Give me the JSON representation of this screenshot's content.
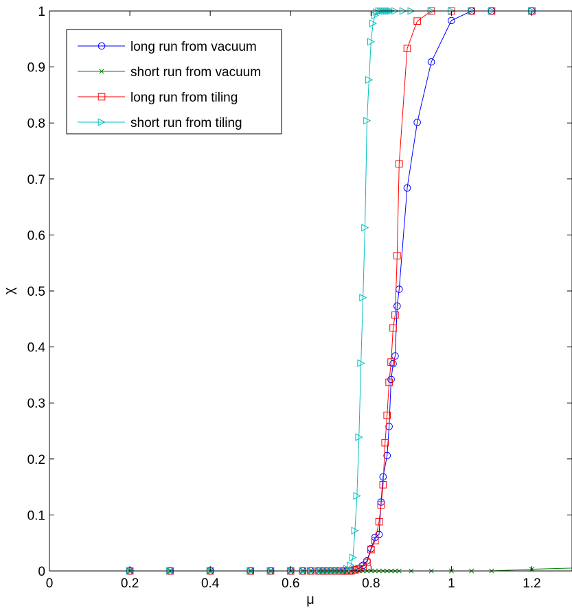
{
  "chart_data": {
    "type": "line",
    "title": "",
    "xlabel": "μ",
    "ylabel": "χ",
    "xlim": [
      0,
      1.3
    ],
    "ylim": [
      0,
      1
    ],
    "xticks": [
      0,
      0.2,
      0.4,
      0.6,
      0.8,
      1,
      1.2
    ],
    "xtick_labels": [
      "0",
      "0.2",
      "0.4",
      "0.6",
      "0.8",
      "1",
      "1.2"
    ],
    "yticks": [
      0,
      0.1,
      0.2,
      0.3,
      0.4,
      0.5,
      0.6,
      0.7,
      0.8,
      0.9,
      1
    ],
    "ytick_labels": [
      "0",
      "0.1",
      "0.2",
      "0.3",
      "0.4",
      "0.5",
      "0.6",
      "0.7",
      "0.8",
      "0.9",
      "1"
    ],
    "grid": false,
    "legend_position": "top-left",
    "series": [
      {
        "name": "long run from vacuum",
        "color": "#0000ff",
        "marker": "circle",
        "x": [
          0,
          0.2,
          0.3,
          0.4,
          0.5,
          0.55,
          0.6,
          0.63,
          0.65,
          0.67,
          0.68,
          0.69,
          0.7,
          0.71,
          0.72,
          0.73,
          0.74,
          0.75,
          0.76,
          0.77,
          0.78,
          0.79,
          0.8,
          0.81,
          0.82,
          0.825,
          0.83,
          0.84,
          0.845,
          0.85,
          0.855,
          0.86,
          0.865,
          0.87,
          0.89,
          0.915,
          0.95,
          1,
          1.05,
          1.1,
          1.2,
          1.3
        ],
        "y": [
          0,
          0,
          0,
          0,
          0,
          0,
          0,
          0,
          0,
          0,
          0,
          0,
          0,
          0,
          0,
          0,
          0,
          0,
          0.002,
          0.005,
          0.01,
          0.018,
          0.04,
          0.06,
          0.065,
          0.123,
          0.168,
          0.206,
          0.258,
          0.342,
          0.37,
          0.384,
          0.473,
          0.503,
          0.684,
          0.801,
          0.909,
          0.983,
          1,
          1,
          1,
          1
        ]
      },
      {
        "name": "short run from vacuum",
        "color": "#008000",
        "marker": "x",
        "x": [
          0,
          0.2,
          0.3,
          0.4,
          0.5,
          0.55,
          0.6,
          0.63,
          0.65,
          0.67,
          0.68,
          0.69,
          0.7,
          0.71,
          0.72,
          0.73,
          0.74,
          0.75,
          0.76,
          0.77,
          0.78,
          0.79,
          0.8,
          0.81,
          0.82,
          0.83,
          0.84,
          0.85,
          0.86,
          0.87,
          0.9,
          0.95,
          1,
          1.05,
          1.1,
          1.2,
          1.3
        ],
        "y": [
          0,
          0,
          0,
          0,
          0,
          0,
          0,
          0,
          0,
          0,
          0,
          0,
          0,
          0,
          0,
          0,
          0,
          0,
          0,
          0,
          0,
          0,
          0,
          0,
          0,
          0,
          0,
          0,
          0,
          0,
          0,
          0,
          0,
          0,
          0,
          0.003,
          0.005
        ]
      },
      {
        "name": "long run from tiling",
        "color": "#ff0000",
        "marker": "square",
        "x": [
          0,
          0.2,
          0.3,
          0.4,
          0.5,
          0.55,
          0.6,
          0.63,
          0.65,
          0.67,
          0.68,
          0.69,
          0.7,
          0.71,
          0.72,
          0.73,
          0.74,
          0.75,
          0.76,
          0.77,
          0.78,
          0.79,
          0.8,
          0.81,
          0.82,
          0.825,
          0.83,
          0.835,
          0.84,
          0.845,
          0.85,
          0.855,
          0.86,
          0.865,
          0.87,
          0.89,
          0.915,
          0.95,
          1,
          1.05,
          1.1,
          1.2,
          1.3
        ],
        "y": [
          0,
          0,
          0,
          0,
          0,
          0,
          0,
          0,
          0,
          0,
          0,
          0,
          0,
          0,
          0,
          0,
          0,
          0,
          0.002,
          0.004,
          0.008,
          0.015,
          0.038,
          0.054,
          0.088,
          0.118,
          0.154,
          0.229,
          0.278,
          0.337,
          0.373,
          0.434,
          0.457,
          0.563,
          0.727,
          0.933,
          0.982,
          1,
          1,
          1,
          1,
          1,
          1
        ]
      },
      {
        "name": "short run from tiling",
        "color": "#00bfbf",
        "marker": "triangle-right",
        "x": [
          0,
          0.2,
          0.3,
          0.4,
          0.5,
          0.55,
          0.6,
          0.63,
          0.65,
          0.67,
          0.68,
          0.69,
          0.7,
          0.71,
          0.72,
          0.73,
          0.74,
          0.75,
          0.755,
          0.76,
          0.765,
          0.77,
          0.775,
          0.78,
          0.785,
          0.79,
          0.795,
          0.8,
          0.805,
          0.81,
          0.815,
          0.82,
          0.825,
          0.83,
          0.835,
          0.84,
          0.845,
          0.85,
          0.86,
          0.88,
          0.9,
          0.95,
          1,
          1.05,
          1.1,
          1.2,
          1.3
        ],
        "y": [
          0,
          0,
          0,
          0,
          0,
          0,
          0,
          0,
          0,
          0,
          0,
          0,
          0,
          0,
          0,
          0,
          0.004,
          0.01,
          0.024,
          0.072,
          0.134,
          0.239,
          0.371,
          0.488,
          0.613,
          0.804,
          0.877,
          0.945,
          0.978,
          0.992,
          0.998,
          1,
          1,
          1,
          1,
          1,
          1,
          1,
          1,
          1,
          1,
          1,
          1,
          1,
          1,
          1,
          1
        ]
      }
    ]
  }
}
